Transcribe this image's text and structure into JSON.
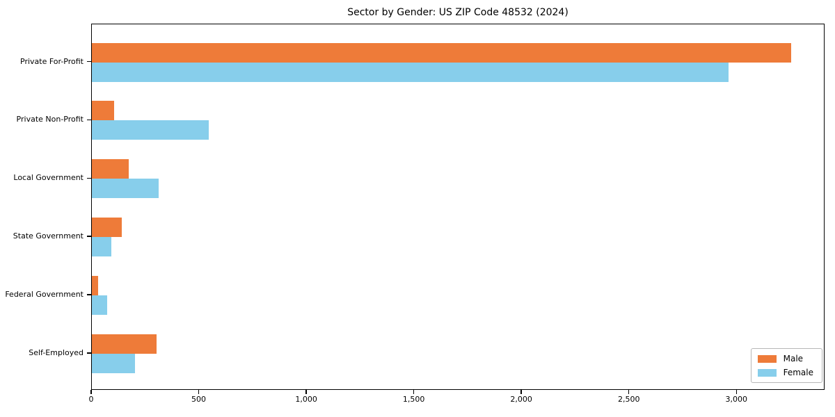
{
  "title": "Sector by Gender: US ZIP Code 48532 (2024)",
  "chart_data": {
    "type": "bar",
    "orientation": "horizontal",
    "title": "Sector by Gender: US ZIP Code 48532 (2024)",
    "categories": [
      "Private For-Profit",
      "Private Non-Profit",
      "Local Government",
      "State Government",
      "Federal Government",
      "Self-Employed"
    ],
    "series": [
      {
        "name": "Male",
        "color": "#ee7b39",
        "values": [
          3250,
          105,
          170,
          140,
          30,
          300
        ]
      },
      {
        "name": "Female",
        "color": "#87ceeb",
        "values": [
          2960,
          545,
          310,
          90,
          70,
          200
        ]
      }
    ],
    "xlabel": "",
    "ylabel": "",
    "xlim": [
      0,
      3410
    ],
    "xticks": [
      0,
      500,
      1000,
      1500,
      2000,
      2500,
      3000
    ],
    "xtick_labels": [
      "0",
      "500",
      "1,000",
      "1,500",
      "2,000",
      "2,500",
      "3,000"
    ],
    "grid": false,
    "legend": {
      "position": "lower-right",
      "entries": [
        "Male",
        "Female"
      ]
    }
  }
}
